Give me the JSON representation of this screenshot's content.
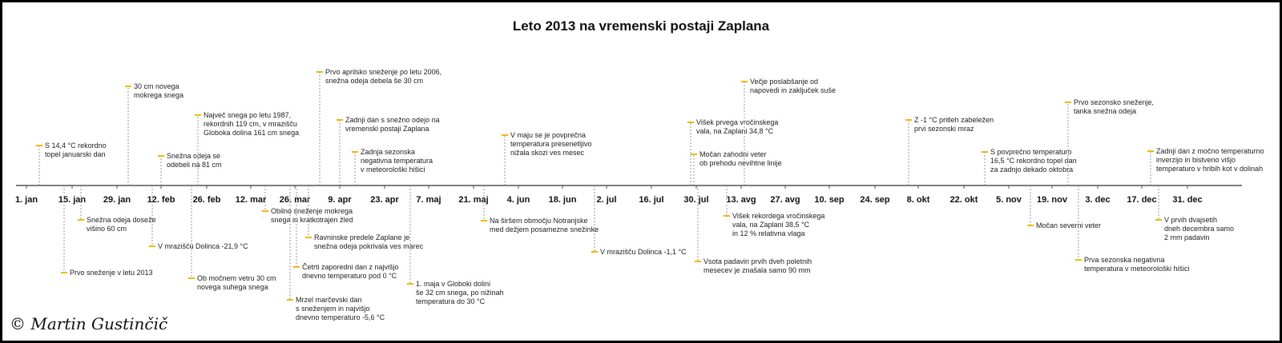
{
  "title": "Leto 2013 na vremenski postaji Zaplana",
  "axis_labels": [
    "1. jan",
    "15. jan",
    "29. jan",
    "12. feb",
    "26. feb",
    "12. mar",
    "26. mar",
    "9. apr",
    "23. apr",
    "7. maj",
    "21. maj",
    "4. jun",
    "18. jun",
    "2. jul",
    "16. jul",
    "30. jul",
    "13. avg",
    "27. avg",
    "10. sep",
    "24. sep",
    "8. okt",
    "22. okt",
    "5. nov",
    "19. nov",
    "3. dec",
    "17. dec",
    "31. dec"
  ],
  "events_above": [
    {
      "lines": [
        "S 14,4 °C rekordno",
        "topel januarski dan"
      ]
    },
    {
      "lines": [
        "30 cm novega",
        "mokrega snega"
      ]
    },
    {
      "lines": [
        "Snežna odeja se",
        "odebeli na 81 cm"
      ]
    },
    {
      "lines": [
        "Največ snega po letu 1987,",
        "rekordnih 119 cm, v mrazišču",
        "Globoka dolina 161 cm snega"
      ]
    },
    {
      "lines": [
        "Prvo aprilsko sneženje po letu 2006,",
        "snežna odeja debela še 30 cm"
      ]
    },
    {
      "lines": [
        "Zadnji dan s snežno odejo na",
        "vremenski postaji Zaplana"
      ]
    },
    {
      "lines": [
        "Zadnja sezonska",
        "negativna temperatura",
        "v meteorološki hišici"
      ]
    },
    {
      "lines": [
        "V maju se je povprečna",
        "temperatura presenetljivo",
        "nižala skozi ves mesec"
      ]
    },
    {
      "lines": [
        "Višek prvega vročinskega",
        "vala, na Zaplani 34,8 °C"
      ]
    },
    {
      "lines": [
        "Močan zahodni veter",
        "ob prehodu nevihtne linije"
      ]
    },
    {
      "lines": [
        "Večje poslabšanje od",
        "napovedi in zaključek suše"
      ]
    },
    {
      "lines": [
        "Z -1 °C pritleh zabeležen",
        "prvi sezonski mraz"
      ]
    },
    {
      "lines": [
        "S povprečno temperaturo",
        "16,5 °C rekordno topel dan",
        "za zadnjo dekado oktobra"
      ]
    },
    {
      "lines": [
        "Prvo sezonsko sneženje,",
        "tanka snežna odeja"
      ]
    },
    {
      "lines": [
        "Zadnji dan z močno temperaturno",
        "inverzijo in bistveno višjo",
        "temperaturo v hribih kot v dolinah"
      ]
    }
  ],
  "events_below": [
    {
      "lines": [
        "Snežna odeja doseže",
        "višino 60 cm"
      ]
    },
    {
      "lines": [
        "Prvo sneženje v letu 2013"
      ]
    },
    {
      "lines": [
        "V mrazišču Dolinca -21,9 °C"
      ]
    },
    {
      "lines": [
        "Ob močnem vetru 30 cm",
        "novega suhega snega"
      ]
    },
    {
      "lines": [
        "Obilno sneženje mokrega",
        "snega in kratkotrajen žled"
      ]
    },
    {
      "lines": [
        "Ravninske predele Zaplane je",
        "snežna odeja pokrivala ves marec"
      ]
    },
    {
      "lines": [
        "Četrti zaporedni dan z najvišjo",
        "dnevno temperaturo pod 0 °C"
      ]
    },
    {
      "lines": [
        "Mrzel marčevski dan",
        "s sneženjem in najvišjo",
        "dnevno temperaturo -5,6 °C"
      ]
    },
    {
      "lines": [
        "1. maja v Globoki dolini",
        "še 32 cm snega, po nižinah",
        "temperatura do 30 °C"
      ]
    },
    {
      "lines": [
        "Na širšem območju Notranjske",
        "med dežjem posamezne snežinke"
      ]
    },
    {
      "lines": [
        "V mrazišču Dolinca -1,1 °C"
      ]
    },
    {
      "lines": [
        "Vsota padavin prvih dveh poletnih",
        "mesecev je znašala samo 90 mm"
      ]
    },
    {
      "lines": [
        "Višek rekordega vročinskega",
        "vala, na Zaplani 38,5 °C",
        "in 12 % relativna vlaga"
      ]
    },
    {
      "lines": [
        "Močan severni veter"
      ]
    },
    {
      "lines": [
        "Prva sezonska negativna",
        "temperatura v meteorološki hišici"
      ]
    },
    {
      "lines": [
        "V prvih dvajsetih",
        "dneh decembra samo",
        "2 mm padavin"
      ]
    }
  ],
  "copyright": "© Martin Gustinčič"
}
